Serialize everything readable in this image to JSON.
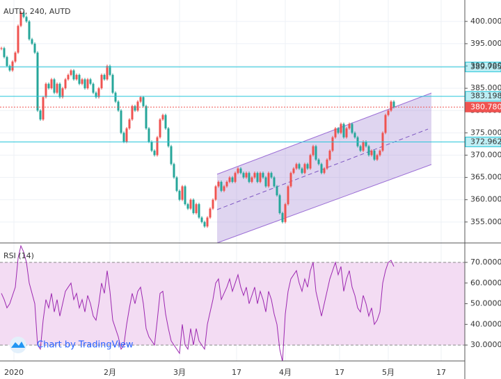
{
  "chart_data": [
    {
      "type": "candlestick",
      "title": "AUTD, 240, AUTD",
      "close": [
        394,
        392,
        390,
        389,
        391,
        393,
        399,
        402,
        401,
        400,
        396,
        395,
        393,
        380,
        378,
        383,
        386,
        385,
        387,
        384,
        386,
        383,
        385,
        387,
        388,
        389,
        387,
        388,
        386,
        387,
        385,
        387,
        386,
        384,
        383,
        385,
        388,
        387,
        390,
        388,
        384,
        382,
        380,
        375,
        373,
        376,
        378,
        381,
        380,
        382,
        383,
        381,
        376,
        373,
        371,
        370,
        374,
        378,
        379,
        376,
        372,
        368,
        365,
        362,
        360,
        363,
        359,
        358,
        360,
        357,
        359,
        356,
        355,
        354,
        356,
        358,
        360,
        363,
        364,
        362,
        363,
        364,
        365,
        364,
        366,
        367,
        366,
        365,
        366,
        364,
        365,
        366,
        364,
        366,
        365,
        363,
        366,
        365,
        363,
        361,
        357,
        355,
        359,
        363,
        366,
        367,
        368,
        367,
        366,
        368,
        367,
        370,
        372,
        369,
        368,
        366,
        367,
        369,
        371,
        374,
        376,
        375,
        377,
        374,
        376,
        377,
        375,
        374,
        372,
        371,
        373,
        372,
        370,
        371,
        369,
        370,
        371,
        375,
        379,
        380,
        382,
        380.78
      ],
      "up_color": "#ef5350",
      "down_color": "#26a69a",
      "xlim": [
        -0.5,
        166.5
      ],
      "xticks": [
        {
          "value": 4.5,
          "label": "2020"
        },
        {
          "value": 39,
          "label": "2月"
        },
        {
          "value": 64,
          "label": "3月"
        },
        {
          "value": 84.5,
          "label": "17"
        },
        {
          "value": 102,
          "label": "4月"
        },
        {
          "value": 121.5,
          "label": "17"
        },
        {
          "value": 139,
          "label": "5月"
        },
        {
          "value": 158,
          "label": "17"
        }
      ],
      "ylim": [
        350.3,
        404.8
      ],
      "yticks": [
        {
          "value": 355,
          "label": "355.000"
        },
        {
          "value": 360,
          "label": "360.000"
        },
        {
          "value": 365,
          "label": "365.000"
        },
        {
          "value": 370,
          "label": "370.000"
        },
        {
          "value": 375,
          "label": "375.000"
        },
        {
          "value": 380,
          "label": "380.000"
        },
        {
          "value": 385,
          "label": "385.000"
        },
        {
          "value": 390,
          "label": "390.000"
        },
        {
          "value": 395,
          "label": "395.000"
        },
        {
          "value": 400,
          "label": "400.000"
        }
      ],
      "levels": [
        {
          "value": 389.785,
          "color": "#26c6da"
        },
        {
          "value": 383.198,
          "color": "#26c6da"
        },
        {
          "value": 380.78,
          "label": "380.780",
          "color": "#ef5350"
        },
        {
          "value": 372.962,
          "color": "#26c6da"
        }
      ]
    },
    {
      "type": "line",
      "title": "RSI (14)",
      "color": "#9c27b0",
      "band_color": "#f3dcf3",
      "values": [
        55,
        52,
        48,
        50,
        54,
        58,
        72,
        78,
        75,
        70,
        60,
        55,
        50,
        30,
        28,
        42,
        52,
        48,
        55,
        46,
        52,
        44,
        50,
        56,
        58,
        60,
        52,
        55,
        48,
        52,
        46,
        54,
        50,
        44,
        42,
        50,
        60,
        55,
        66,
        56,
        42,
        38,
        34,
        28,
        30,
        40,
        48,
        55,
        50,
        56,
        58,
        50,
        38,
        34,
        32,
        30,
        42,
        55,
        56,
        45,
        38,
        32,
        30,
        28,
        26,
        40,
        30,
        28,
        38,
        30,
        38,
        32,
        30,
        28,
        40,
        46,
        52,
        60,
        62,
        52,
        55,
        58,
        62,
        56,
        60,
        64,
        58,
        54,
        58,
        50,
        54,
        58,
        50,
        56,
        52,
        46,
        56,
        52,
        45,
        40,
        28,
        22,
        45,
        56,
        62,
        64,
        66,
        60,
        56,
        62,
        58,
        66,
        70,
        56,
        50,
        44,
        50,
        56,
        62,
        66,
        70,
        64,
        68,
        56,
        62,
        66,
        58,
        54,
        48,
        46,
        54,
        50,
        44,
        48,
        40,
        42,
        46,
        60,
        66,
        70,
        71,
        68
      ],
      "ylim": [
        22.3,
        79.4
      ],
      "yticks": [
        {
          "value": 30,
          "label": "30.0000"
        },
        {
          "value": 40,
          "label": "40.0000"
        },
        {
          "value": 50,
          "label": "50.0000"
        },
        {
          "value": 60,
          "label": "60.0000"
        },
        {
          "value": 70,
          "label": "70.0000"
        }
      ]
    }
  ],
  "watermark": "Chart by TradingView"
}
